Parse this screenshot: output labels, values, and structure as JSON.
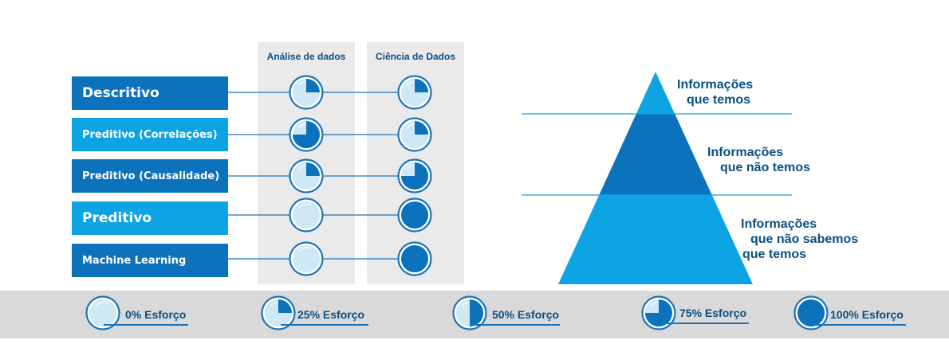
{
  "columns": [
    "Análise de dados",
    "Ciência de Dados"
  ],
  "rows": [
    {
      "label": "Descritivo",
      "color": "#0b72bb",
      "analise_effort": 0.25,
      "ciencia_effort": 0.25
    },
    {
      "label": "Preditivo (Correlações)",
      "color": "#0ea4e3",
      "analise_effort": 0.75,
      "ciencia_effort": 0.25
    },
    {
      "label": "Preditivo (Causalidade)",
      "color": "#0b72bb",
      "analise_effort": 0.25,
      "ciencia_effort": 0.75
    },
    {
      "label": "Preditivo",
      "color": "#0ea4e3",
      "analise_effort": 0,
      "ciencia_effort": 1
    },
    {
      "label": "Machine Learning",
      "color": "#0b72bb",
      "analise_effort": 0,
      "ciencia_effort": 1
    }
  ],
  "pyramid": {
    "levels": [
      {
        "lines": [
          "Informações",
          "que temos"
        ],
        "color": "#0ea4e3"
      },
      {
        "lines": [
          "Informações",
          "que não temos"
        ],
        "color": "#0b72bb"
      },
      {
        "lines": [
          "Informações",
          "que não sabemos",
          "que temos"
        ],
        "color": "#0ea4e3"
      }
    ]
  },
  "legend": [
    {
      "label": "0% Esforço",
      "effort": 0
    },
    {
      "label": "25% Esforço",
      "effort": 0.25
    },
    {
      "label": "50% Esforço",
      "effort": 0.5
    },
    {
      "label": "75% Esforço",
      "effort": 0.75
    },
    {
      "label": "100% Esforço",
      "effort": 1
    }
  ],
  "colors": {
    "dark_blue": "#0b72bb",
    "light_blue": "#0ea4e3",
    "text_blue": "#0b4f82",
    "circle_fill": "#cfe8f6",
    "circle_ring": "#1b74bb"
  }
}
